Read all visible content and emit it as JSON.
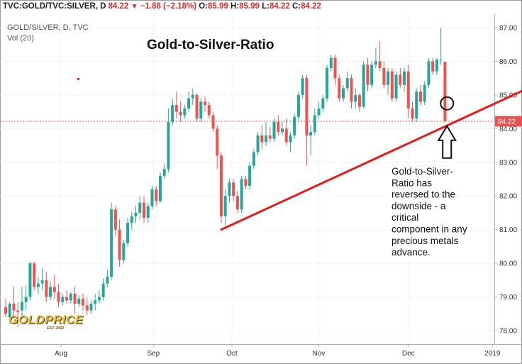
{
  "header": {
    "symbol": "TVC:GOLD/TVC:SILVER, D",
    "last": "84.22",
    "change": "−1.88 (−2.18%)",
    "o_label": "O:",
    "o_value": "85.99",
    "h_label": "H:",
    "h_value": "85.99",
    "l_label": "L:",
    "l_value": "84.22",
    "c_label": "C:",
    "c_value": "84.22"
  },
  "legend": {
    "symbol_line": "GOLD/SILVER, D, TVC",
    "volume_line": "Vol (20)"
  },
  "logo": {
    "word": "GOLDPRICE",
    "est": "EST 2002"
  },
  "colors": {
    "up": "#26a69a",
    "down": "#ef5350",
    "trend": "#e31b1b",
    "price_line": "#e55353",
    "badge": "#e55353"
  },
  "chart_data": {
    "type": "candlestick",
    "title": "Gold-to-Silver-Ratio",
    "ylim": [
      77.6,
      87.4
    ],
    "y_ticks": [
      "87.00",
      "86.00",
      "85.00",
      "84.00",
      "83.00",
      "82.00",
      "81.00",
      "80.00",
      "79.00",
      "78.00"
    ],
    "x_ticks": [
      {
        "label": "Aug",
        "date": "2018-08-01"
      },
      {
        "label": "Sep",
        "date": "2018-09-03"
      },
      {
        "label": "Oct",
        "date": "2018-10-01"
      },
      {
        "label": "Nov",
        "date": "2018-11-01"
      },
      {
        "label": "Dec",
        "date": "2018-12-03"
      },
      {
        "label": "2019",
        "date": "2019-01-02"
      }
    ],
    "last_price": "84.22",
    "candles": [
      [
        78.7,
        78.95,
        78.5,
        78.4
      ],
      [
        78.4,
        78.85,
        78.8,
        78.2
      ],
      [
        78.8,
        79.3,
        78.6,
        78.45
      ],
      [
        78.6,
        78.85,
        78.55,
        78.1
      ],
      [
        78.6,
        79.3,
        78.85,
        78.4
      ],
      [
        78.85,
        79.35,
        79.0,
        78.6
      ],
      [
        79.0,
        80.05,
        80.0,
        78.9
      ],
      [
        80.0,
        80.05,
        79.3,
        79.2
      ],
      [
        79.3,
        79.6,
        79.4,
        79.1
      ],
      [
        79.4,
        79.85,
        79.5,
        79.2
      ],
      [
        79.5,
        79.75,
        79.0,
        78.85
      ],
      [
        79.0,
        79.45,
        79.3,
        78.9
      ],
      [
        79.3,
        79.65,
        79.15,
        78.95
      ],
      [
        79.15,
        79.4,
        78.85,
        78.7
      ],
      [
        78.85,
        79.1,
        79.0,
        78.75
      ],
      [
        79.0,
        79.2,
        78.9,
        78.8
      ],
      [
        78.9,
        79.15,
        79.1,
        78.8
      ],
      [
        79.1,
        79.3,
        78.8,
        78.5
      ],
      [
        78.8,
        79.05,
        78.95,
        78.7
      ],
      [
        78.95,
        79.1,
        78.75,
        78.6
      ],
      [
        78.75,
        79.0,
        78.6,
        78.45
      ],
      [
        78.6,
        78.9,
        78.8,
        78.5
      ],
      [
        78.8,
        79.1,
        78.9,
        78.6
      ],
      [
        78.9,
        79.2,
        79.0,
        78.8
      ],
      [
        79.0,
        79.55,
        79.4,
        78.9
      ],
      [
        79.4,
        79.8,
        79.6,
        79.3
      ],
      [
        79.6,
        81.8,
        81.6,
        79.5
      ],
      [
        81.6,
        81.7,
        81.0,
        80.8
      ],
      [
        81.0,
        81.3,
        80.1,
        79.9
      ],
      [
        80.1,
        80.7,
        80.6,
        80.0
      ],
      [
        80.6,
        81.35,
        81.2,
        80.5
      ],
      [
        81.2,
        81.55,
        81.4,
        81.0
      ],
      [
        81.4,
        81.7,
        81.5,
        81.2
      ],
      [
        81.5,
        82.0,
        81.8,
        81.3
      ],
      [
        81.8,
        82.0,
        81.35,
        81.2
      ],
      [
        81.35,
        81.8,
        81.7,
        81.2
      ],
      [
        81.7,
        82.3,
        82.2,
        81.6
      ],
      [
        82.2,
        82.3,
        81.85,
        81.7
      ],
      [
        81.85,
        82.7,
        82.6,
        81.8
      ],
      [
        82.6,
        82.95,
        82.8,
        82.5
      ],
      [
        82.8,
        84.6,
        84.2,
        82.7
      ],
      [
        84.2,
        84.9,
        84.7,
        84.1
      ],
      [
        84.7,
        85.1,
        84.5,
        84.3
      ],
      [
        84.5,
        84.8,
        84.4,
        84.2
      ],
      [
        84.4,
        84.7,
        84.6,
        84.3
      ],
      [
        84.6,
        85.1,
        84.9,
        84.5
      ],
      [
        84.9,
        85.2,
        85.0,
        84.7
      ],
      [
        85.0,
        85.05,
        84.3,
        84.2
      ],
      [
        84.3,
        84.9,
        84.8,
        84.2
      ],
      [
        84.8,
        84.95,
        84.7,
        84.5
      ],
      [
        84.7,
        84.8,
        84.4,
        84.3
      ],
      [
        84.4,
        84.5,
        84.0,
        83.9
      ],
      [
        84.0,
        84.1,
        83.2,
        82.8
      ],
      [
        83.2,
        83.3,
        81.4,
        81.2
      ],
      [
        81.4,
        82.2,
        82.0,
        81.1
      ],
      [
        82.0,
        82.5,
        82.4,
        81.8
      ],
      [
        82.4,
        82.5,
        82.0,
        81.85
      ],
      [
        82.0,
        82.15,
        81.6,
        81.5
      ],
      [
        81.6,
        82.6,
        82.5,
        81.5
      ],
      [
        82.5,
        82.6,
        82.3,
        82.2
      ],
      [
        82.3,
        83.0,
        82.9,
        82.2
      ],
      [
        82.9,
        83.4,
        83.3,
        82.8
      ],
      [
        83.3,
        83.9,
        83.8,
        83.2
      ],
      [
        83.8,
        84.1,
        83.6,
        83.4
      ],
      [
        83.6,
        84.2,
        83.8,
        83.5
      ],
      [
        83.8,
        84.05,
        83.7,
        83.6
      ],
      [
        83.7,
        84.3,
        84.2,
        83.6
      ],
      [
        84.2,
        84.4,
        83.9,
        83.8
      ],
      [
        83.9,
        84.2,
        84.0,
        83.8
      ],
      [
        84.0,
        84.3,
        83.6,
        83.5
      ],
      [
        83.6,
        83.9,
        83.8,
        83.3
      ],
      [
        83.8,
        84.45,
        84.35,
        83.7
      ],
      [
        84.35,
        85.1,
        85.0,
        84.2
      ],
      [
        85.0,
        85.6,
        85.5,
        84.9
      ],
      [
        85.5,
        85.6,
        83.8,
        82.9
      ],
      [
        83.8,
        84.1,
        83.9,
        83.2
      ],
      [
        83.9,
        84.6,
        84.4,
        83.8
      ],
      [
        84.4,
        84.8,
        84.6,
        84.3
      ],
      [
        84.6,
        85.0,
        84.9,
        84.5
      ],
      [
        84.9,
        85.9,
        85.8,
        84.8
      ],
      [
        85.8,
        86.2,
        86.1,
        85.7
      ],
      [
        86.1,
        86.2,
        85.5,
        85.3
      ],
      [
        85.5,
        85.6,
        84.9,
        84.8
      ],
      [
        84.9,
        85.3,
        85.2,
        84.8
      ],
      [
        85.2,
        85.7,
        85.5,
        85.1
      ],
      [
        85.5,
        85.6,
        84.8,
        84.6
      ],
      [
        84.8,
        85.2,
        85.0,
        84.6
      ],
      [
        85.0,
        85.05,
        84.65,
        84.5
      ],
      [
        84.65,
        86.0,
        85.9,
        84.6
      ],
      [
        85.9,
        86.1,
        85.3,
        85.1
      ],
      [
        85.3,
        86.0,
        85.9,
        85.2
      ],
      [
        85.9,
        86.4,
        86.0,
        85.8
      ],
      [
        86.0,
        86.6,
        85.8,
        85.7
      ],
      [
        85.8,
        86.0,
        85.3,
        85.2
      ],
      [
        85.3,
        85.8,
        85.7,
        85.0
      ],
      [
        85.7,
        85.8,
        84.9,
        84.8
      ],
      [
        84.9,
        85.7,
        85.6,
        84.8
      ],
      [
        85.6,
        85.8,
        85.3,
        85.2
      ],
      [
        85.3,
        85.8,
        85.7,
        85.1
      ],
      [
        85.7,
        85.9,
        84.6,
        84.3
      ],
      [
        84.6,
        84.8,
        84.3,
        84.2
      ],
      [
        84.3,
        85.2,
        85.1,
        84.2
      ],
      [
        85.1,
        85.3,
        84.8,
        84.7
      ],
      [
        84.8,
        85.4,
        85.3,
        84.7
      ],
      [
        85.3,
        86.1,
        86.0,
        85.2
      ],
      [
        86.0,
        86.1,
        85.7,
        85.6
      ],
      [
        85.7,
        86.1,
        86.05,
        85.6
      ],
      [
        86.05,
        87.0,
        86.05,
        85.9
      ],
      [
        85.99,
        85.99,
        84.22,
        84.22
      ]
    ],
    "trendline": {
      "start": [
        53,
        81.0
      ],
      "end": [
        132,
        85.4
      ]
    },
    "reversal_marker": {
      "index": 108.5,
      "value": 84.75
    },
    "annotation": "Gold-to-Silver-Ratio has reversed to the downside - a critical component in any precious metals advance.",
    "note_lines": [
      "Gold-to-Silver-",
      "Ratio has",
      "reversed to the",
      "downside - a",
      "critical",
      "component in any",
      "precious metals",
      "advance."
    ]
  }
}
